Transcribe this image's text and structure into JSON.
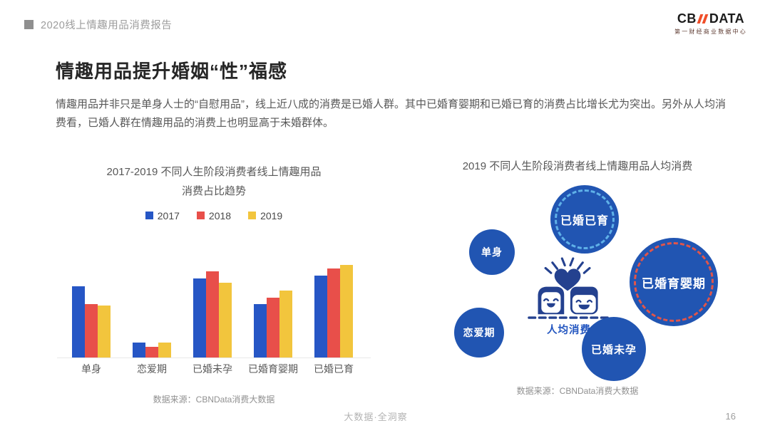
{
  "header": {
    "report_title": "2020线上情趣用品消费报告",
    "logo": {
      "wordmark_left": "CB",
      "wordmark_right": "DATA",
      "subtitle": "第一财经商业数据中心"
    }
  },
  "page": {
    "title": "情趣用品提升婚姻“性”福感",
    "intro": "情趣用品并非只是单身人士的“自慰用品”，线上近八成的消费是已婚人群。其中已婚育婴期和已婚已育的消费占比增长尤为突出。另外从人均消费看，已婚人群在情趣用品的消费上也明显高于未婚群体。"
  },
  "left_chart": {
    "title_line1": "2017-2019 不同人生阶段消费者线上情趣用品",
    "title_line2": "消费占比趋势",
    "source": "数据来源：CBNData消费大数据"
  },
  "right_chart": {
    "title": "2019 不同人生阶段消费者线上情趣用品人均消费",
    "center_label": "人均消费",
    "source": "数据来源：CBNData消费大数据"
  },
  "footer": {
    "slogan": "大数据·全洞察",
    "page_number": "16"
  },
  "colors": {
    "bar_2017_blue": "#2656c5",
    "bar_2018_red": "#e84f4a",
    "bar_2019_yellow": "#f2c53d",
    "bubble_blue": "#2155b2",
    "ring_lightblue": "#5fb1e8",
    "ring_red": "#e25549",
    "logo_accent": "#f04e29",
    "icon_navy": "#24418f"
  },
  "chart_data": [
    {
      "type": "bar",
      "title": "2017-2019 不同人生阶段消费者线上情趣用品消费占比趋势",
      "categories": [
        "单身",
        "恋爱期",
        "已婚未孕",
        "已婚育婴期",
        "已婚已育"
      ],
      "series": [
        {
          "name": "2017",
          "color": "#2656c5",
          "values": [
            24,
            5,
            26.5,
            18,
            27.5
          ]
        },
        {
          "name": "2018",
          "color": "#e84f4a",
          "values": [
            18,
            3.5,
            29,
            20,
            30
          ]
        },
        {
          "name": "2019",
          "color": "#f2c53d",
          "values": [
            17.5,
            5,
            25,
            22.5,
            31
          ]
        }
      ],
      "xlabel": "",
      "ylabel": "",
      "ylim": [
        0,
        33
      ],
      "grid": false,
      "legend_position": "top",
      "note": "axis unlabeled in figure; values are % shares estimated from bar heights (each year sums to ~100%)"
    },
    {
      "type": "scatter",
      "subtype": "bubble",
      "title": "2019 不同人生阶段消费者线上情趣用品人均消费",
      "center_label": "人均消费",
      "size_encodes": "relative per-capita spend (no numeric labels shown)",
      "size_rank": [
        "已婚育婴期",
        "已婚已育",
        "已婚未孕",
        "恋爱期",
        "单身"
      ],
      "bubble_color": "#2155b2",
      "bubbles": [
        {
          "label": "已婚已育",
          "cx": 220,
          "cy": 58,
          "r": 48,
          "ring_color": "#5fb1e8"
        },
        {
          "label": "单身",
          "cx": 90,
          "cy": 104,
          "r": 32,
          "ring_color": null
        },
        {
          "label": "已婚育婴期",
          "cx": 345,
          "cy": 146,
          "r": 62,
          "ring_color": "#e25549"
        },
        {
          "label": "恋爱期",
          "cx": 72,
          "cy": 217,
          "r": 35,
          "ring_color": null
        },
        {
          "label": "已婚未孕",
          "cx": 261,
          "cy": 240,
          "r": 45,
          "ring_color": null
        }
      ],
      "legend_position": "none",
      "grid": false
    }
  ]
}
